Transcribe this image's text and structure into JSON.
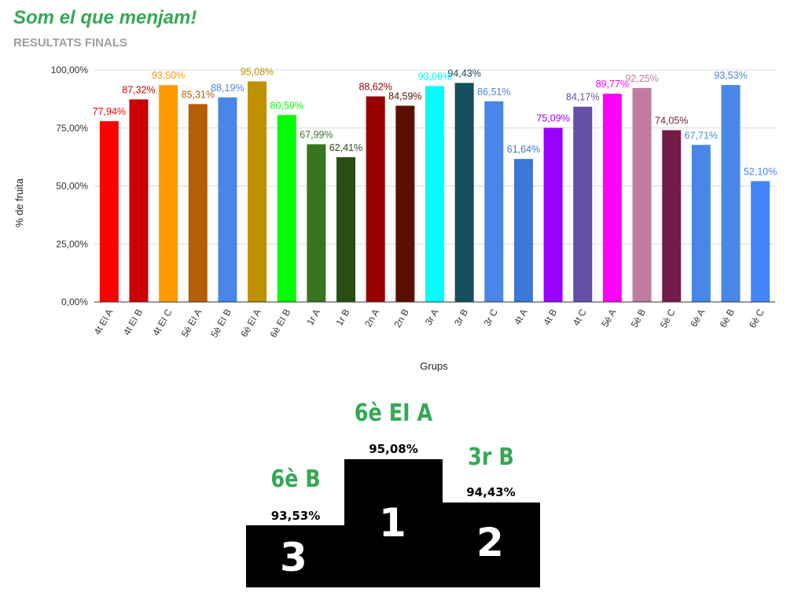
{
  "header": {
    "title": "Som el que menjam!",
    "subtitle": "RESULTATS FINALS"
  },
  "chart_data": {
    "type": "bar",
    "xlabel": "Grups",
    "ylabel": "% de fruita",
    "ylim": [
      0,
      100
    ],
    "yticks": [
      "0,00%",
      "25,00%",
      "50,00%",
      "75,00%",
      "100,00%"
    ],
    "grid": true,
    "categories": [
      "4t EI A",
      "4t EI B",
      "4t EI C",
      "5è EI A",
      "5è EI B",
      "6è EI A",
      "6è EI B",
      "1r A",
      "1r B",
      "2n A",
      "2n B",
      "3r A",
      "3r B",
      "3r C",
      "4t A",
      "4t B",
      "4t C",
      "5è A",
      "5è B",
      "5è C",
      "6è A",
      "6è B",
      "6è C"
    ],
    "values": [
      77.94,
      87.32,
      93.5,
      85.31,
      88.19,
      95.08,
      80.59,
      67.99,
      62.41,
      88.62,
      84.59,
      93.09,
      94.43,
      86.51,
      61.64,
      75.09,
      84.17,
      89.77,
      92.25,
      74.05,
      67.71,
      93.53,
      52.1
    ],
    "labels": [
      "77,94%",
      "87,32%",
      "93,50%",
      "85,31%",
      "88,19%",
      "95,08%",
      "80,59%",
      "67,99%",
      "62,41%",
      "88,62%",
      "84,59%",
      "93,09%",
      "94,43%",
      "86,51%",
      "61,64%",
      "75,09%",
      "84,17%",
      "89,77%",
      "92,25%",
      "74,05%",
      "67,71%",
      "93,53%",
      "52,10%"
    ],
    "colors": [
      "#ff0000",
      "#cc0000",
      "#ff9900",
      "#b45f06",
      "#4a86e8",
      "#bf9000",
      "#00ff00",
      "#38761d",
      "#274e13",
      "#990000",
      "#5b0f00",
      "#00ffff",
      "#134f5c",
      "#4a86e8",
      "#3c78d8",
      "#9900ff",
      "#674ea7",
      "#ff00ff",
      "#c27ba0",
      "#741b47",
      "#4a86e8",
      "#4a86e8",
      "#4285f4"
    ],
    "label_colors": [
      "#ff0000",
      "#cc0000",
      "#ff9900",
      "#b45f06",
      "#4a86e8",
      "#bf9000",
      "#00ff00",
      "#38761d",
      "#274e13",
      "#990000",
      "#5b0f00",
      "#00ffff",
      "#134f5c",
      "#4a86e8",
      "#3c78d8",
      "#9900ff",
      "#674ea7",
      "#ff00ff",
      "#c27ba0",
      "#741b47",
      "#4a86e8",
      "#4a86e8",
      "#4285f4"
    ]
  },
  "podium": {
    "first": {
      "place": "1",
      "name": "6è EI A",
      "value": "95,08%"
    },
    "second": {
      "place": "2",
      "name": "3r B",
      "value": "94,43%"
    },
    "third": {
      "place": "3",
      "name": "6è B",
      "value": "93,53%"
    }
  }
}
